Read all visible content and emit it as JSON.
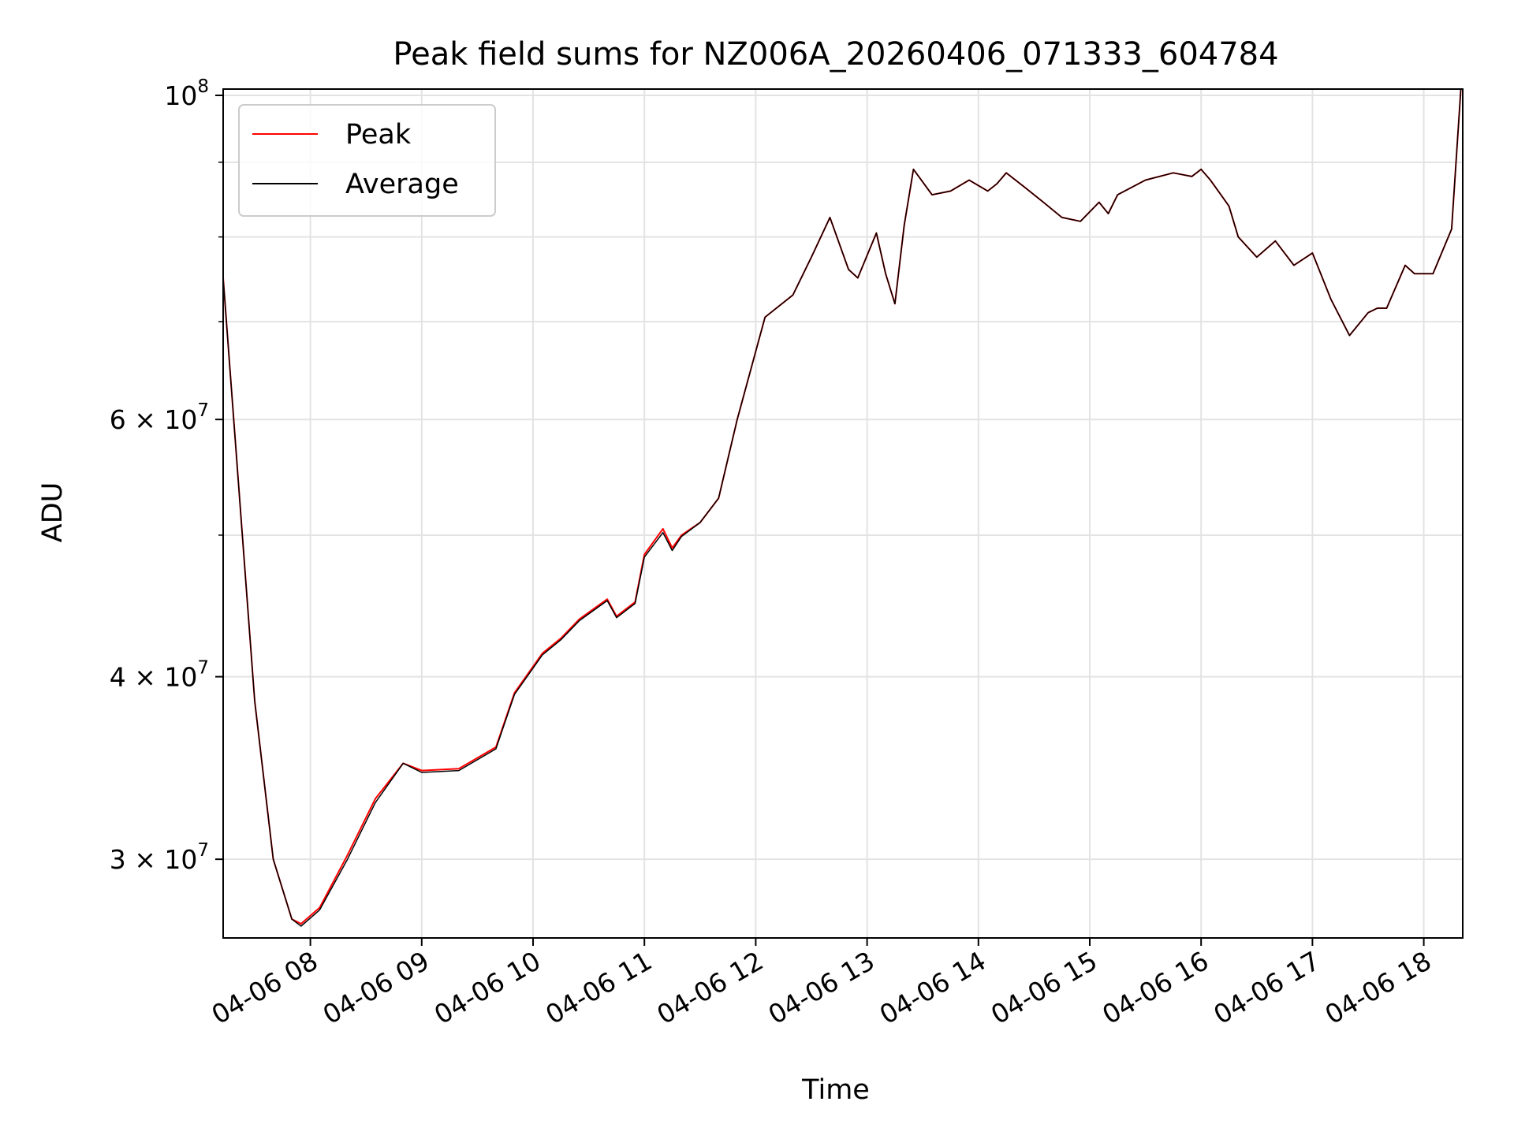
{
  "chart_data": {
    "type": "line",
    "title": "Peak field sums for NZ006A_20260406_071333_604784",
    "xlabel": "Time",
    "ylabel": "ADU",
    "yscale": "log",
    "xlim": [
      "04-06 07:13",
      "04-06 18:21"
    ],
    "ylim": [
      26500000,
      101000000
    ],
    "grid": true,
    "legend_position": "top-left",
    "x_ticks": [
      {
        "label": "04-06 08",
        "hour": 8
      },
      {
        "label": "04-06 09",
        "hour": 9
      },
      {
        "label": "04-06 10",
        "hour": 10
      },
      {
        "label": "04-06 11",
        "hour": 11
      },
      {
        "label": "04-06 12",
        "hour": 12
      },
      {
        "label": "04-06 13",
        "hour": 13
      },
      {
        "label": "04-06 14",
        "hour": 14
      },
      {
        "label": "04-06 15",
        "hour": 15
      },
      {
        "label": "04-06 16",
        "hour": 16
      },
      {
        "label": "04-06 17",
        "hour": 17
      },
      {
        "label": "04-06 18",
        "hour": 18
      }
    ],
    "y_ticks": [
      {
        "value": 30000000,
        "mantissa": "3",
        "base": "10",
        "exp": "7"
      },
      {
        "value": 40000000,
        "mantissa": "4",
        "base": "10",
        "exp": "7"
      },
      {
        "value": 60000000,
        "mantissa": "6",
        "base": "10",
        "exp": "7"
      },
      {
        "value": 100000000,
        "mantissa": "",
        "base": "10",
        "exp": "8"
      }
    ],
    "y_minor_ticks": [
      50000000,
      70000000,
      80000000,
      90000000
    ],
    "x": [
      "07:13",
      "07:30",
      "07:40",
      "07:50",
      "07:55",
      "08:05",
      "08:20",
      "08:35",
      "08:50",
      "09:00",
      "09:20",
      "09:40",
      "09:50",
      "10:05",
      "10:15",
      "10:25",
      "10:40",
      "10:45",
      "10:55",
      "11:00",
      "11:10",
      "11:15",
      "11:20",
      "11:30",
      "11:40",
      "11:50",
      "12:05",
      "12:20",
      "12:30",
      "12:40",
      "12:50",
      "12:55",
      "13:05",
      "13:10",
      "13:15",
      "13:20",
      "13:25",
      "13:35",
      "13:45",
      "13:55",
      "14:05",
      "14:10",
      "14:15",
      "14:25",
      "14:35",
      "14:45",
      "14:55",
      "15:05",
      "15:10",
      "15:15",
      "15:30",
      "15:45",
      "15:55",
      "16:00",
      "16:05",
      "16:15",
      "16:20",
      "16:30",
      "16:40",
      "16:50",
      "17:00",
      "17:10",
      "17:20",
      "17:30",
      "17:35",
      "17:40",
      "17:50",
      "17:55",
      "18:05",
      "18:15",
      "18:20"
    ],
    "series": [
      {
        "name": "Peak",
        "color": "#ff0000",
        "values": [
          75000000,
          38500000,
          30000000,
          27300000,
          27100000,
          27800000,
          30200000,
          33000000,
          34900000,
          34500000,
          34600000,
          35800000,
          39000000,
          41500000,
          42500000,
          43800000,
          45200000,
          44000000,
          45000000,
          48500000,
          50500000,
          49000000,
          50000000,
          51000000,
          53000000,
          60000000,
          70500000,
          73000000,
          77500000,
          82500000,
          76000000,
          75000000,
          80500000,
          75500000,
          72000000,
          81500000,
          89000000,
          85500000,
          86000000,
          87500000,
          86000000,
          87000000,
          88500000,
          86500000,
          84500000,
          82500000,
          82000000,
          84500000,
          83000000,
          85500000,
          87500000,
          88500000,
          88000000,
          89000000,
          87500000,
          84000000,
          80000000,
          77500000,
          79500000,
          76500000,
          78000000,
          72500000,
          68500000,
          71000000,
          71500000,
          71500000,
          76500000,
          75500000,
          75500000,
          81000000,
          101000000
        ]
      },
      {
        "name": "Average",
        "color": "#000000",
        "values": [
          75000000,
          38500000,
          30000000,
          27300000,
          27000000,
          27700000,
          30000000,
          32800000,
          34900000,
          34400000,
          34500000,
          35700000,
          38900000,
          41400000,
          42400000,
          43700000,
          45100000,
          43900000,
          44900000,
          48300000,
          50200000,
          48800000,
          49900000,
          51000000,
          53000000,
          60000000,
          70500000,
          73000000,
          77500000,
          82500000,
          76000000,
          75000000,
          80500000,
          75500000,
          72000000,
          81500000,
          89000000,
          85500000,
          86000000,
          87500000,
          86000000,
          87000000,
          88500000,
          86500000,
          84500000,
          82500000,
          82000000,
          84500000,
          83000000,
          85500000,
          87500000,
          88500000,
          88000000,
          89000000,
          87500000,
          84000000,
          80000000,
          77500000,
          79500000,
          76500000,
          78000000,
          72500000,
          68500000,
          71000000,
          71500000,
          71500000,
          76500000,
          75500000,
          75500000,
          81000000,
          101000000
        ]
      }
    ]
  }
}
